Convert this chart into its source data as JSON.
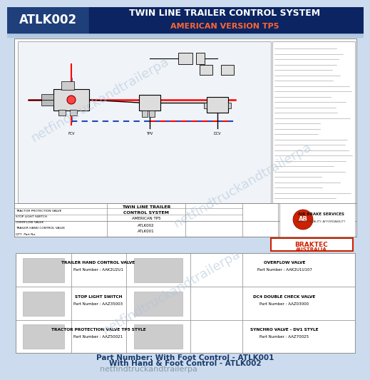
{
  "title_left": "ATLK002",
  "title_right_line1": "TWIN LINE TRAILER CONTROL SYSTEM",
  "title_right_line2": "AMERICAN VERSION TP5",
  "bg_color": "#ccdcee",
  "header_left_color": "#1e3f7a",
  "header_right_color": "#0c2461",
  "header_strip_color": "#b0c8e0",
  "braktec_color": "#cc2200",
  "watermark_text": "netfindtruckandtrailerpa",
  "watermark_color": "#b0c4d8",
  "parts_title1": "TRAILER HAND CONTROL VALVE",
  "parts_pn1": "Part Number : AAK2U2U1",
  "parts_title2": "OVERFLOW VALVE",
  "parts_pn2": "Part Number : AAK2U1U107",
  "parts_title3": "STOP LIGHT SWITCH",
  "parts_pn3": "Part Number : AAZ35003",
  "parts_title4": "DC4 DOUBLE CHECK VALVE",
  "parts_pn4": "Part Number : AAZ03000",
  "parts_title5": "TRACTOR PROTECTION VALVE TP5 STYLE",
  "parts_pn5": "Part Number : AAZ50021",
  "parts_title6": "SYNCHRO VALVE - DV1 STYLE",
  "parts_pn6": "Part Number : AAZ70025",
  "footer_line1": "Part Number: With Foot Control - ATLK001",
  "footer_line2": "With Hand & Foot Control - ATLK002",
  "footer_color": "#1a3a6b"
}
